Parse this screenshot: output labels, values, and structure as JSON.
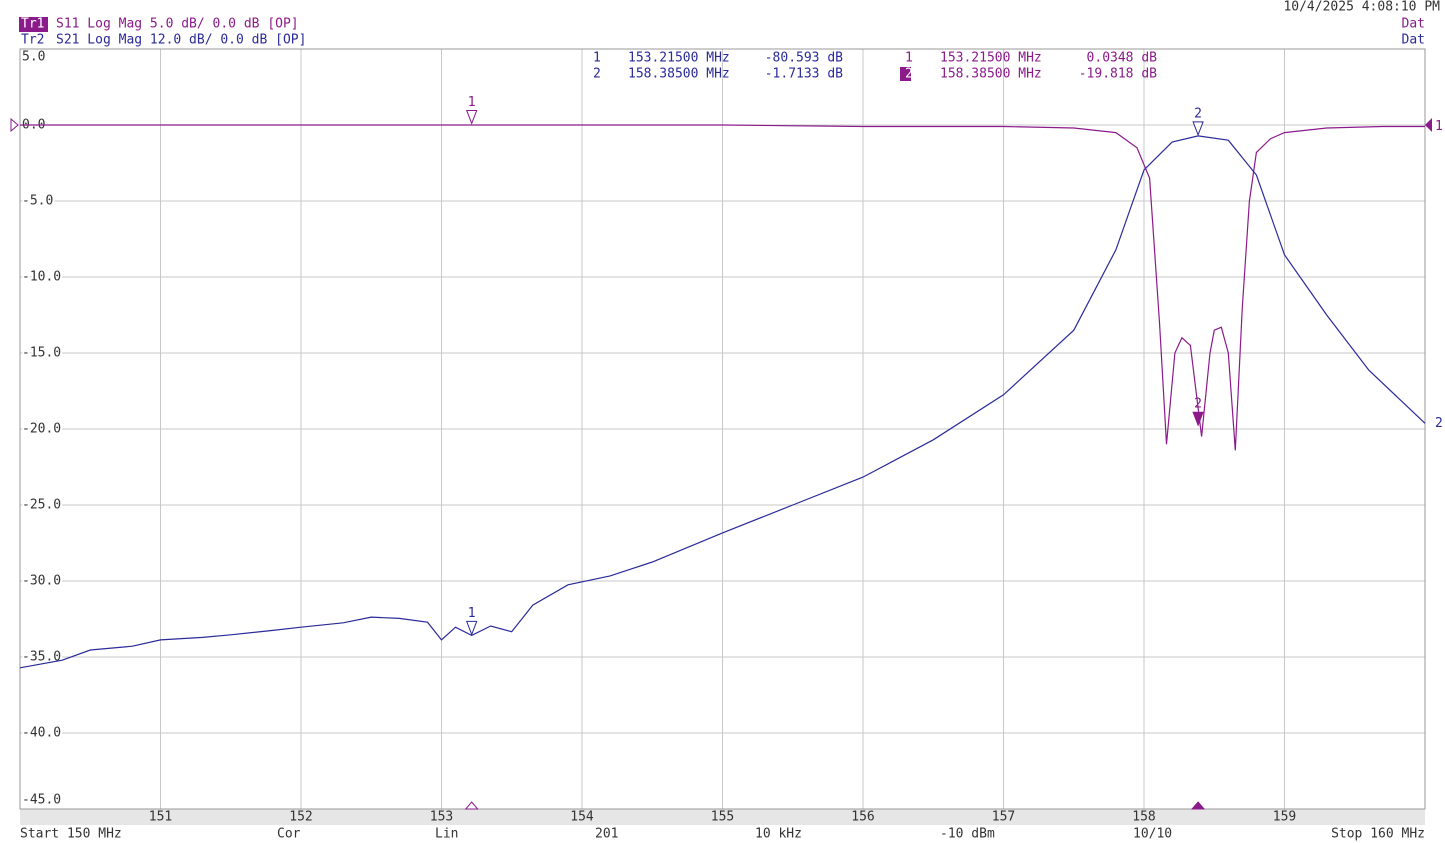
{
  "chart_data": {
    "type": "line",
    "timestamp": "10/4/2025 4:08:10 PM",
    "status": [
      "Dat",
      "Dat"
    ],
    "xlim": [
      150,
      160
    ],
    "xticks": [
      151,
      152,
      153,
      154,
      155,
      156,
      157,
      158,
      159
    ],
    "ylim": [
      -45,
      5
    ],
    "yticks": [
      {
        "value": 5,
        "label": "5.0"
      },
      {
        "value": 0,
        "label": "0.0"
      },
      {
        "value": -5,
        "label": "-5.0"
      },
      {
        "value": -10,
        "label": "-10.0"
      },
      {
        "value": -15,
        "label": "-15.0"
      },
      {
        "value": -20,
        "label": "-20.0"
      },
      {
        "value": -25,
        "label": "-25.0"
      },
      {
        "value": -30,
        "label": "-30.0"
      },
      {
        "value": -35,
        "label": "-35.0"
      },
      {
        "value": -40,
        "label": "-40.0"
      },
      {
        "value": -45,
        "label": "-45.0"
      }
    ],
    "y2lim": [
      -108,
      12
    ],
    "grid": true,
    "series": [
      {
        "name": "Tr1",
        "setup": "S11 Log Mag 5.0 dB/ 0.0 dB [OP]",
        "end_label": "1",
        "color": "#8b1a8b",
        "x": [
          150,
          151,
          152,
          153,
          154,
          155,
          156,
          157,
          157.5,
          157.8,
          157.95,
          158.04,
          158.11,
          158.16,
          158.22,
          158.27,
          158.33,
          158.41,
          158.47,
          158.5,
          158.55,
          158.6,
          158.65,
          158.7,
          158.75,
          158.8,
          158.9,
          159,
          159.3,
          159.7,
          160
        ],
        "values": [
          0,
          0,
          0,
          0,
          0,
          0,
          -0.1,
          -0.1,
          -0.2,
          -0.5,
          -1.5,
          -3.5,
          -13,
          -21,
          -15,
          -14,
          -14.5,
          -20.5,
          -15,
          -13.5,
          -13.3,
          -15,
          -21.4,
          -12,
          -5,
          -1.8,
          -0.9,
          -0.5,
          -0.2,
          -0.1,
          -0.1
        ],
        "markers": [
          {
            "label": "1",
            "x": 153.215,
            "y": 0.0348
          },
          {
            "label": "2",
            "x": 158.385,
            "y": -19.818
          }
        ],
        "readout": [
          [
            "1",
            "153.21500 MHz",
            "0.0348 dB"
          ],
          [
            "2",
            "158.38500 MHz",
            "-19.818 dB"
          ]
        ]
      },
      {
        "name": "Tr2",
        "setup": "S21 Log Mag 12.0 dB/ 0.0 dB [OP]",
        "end_label": "2",
        "color": "#2a2a9a",
        "axis": "y2",
        "x": [
          150,
          150.3,
          150.5,
          150.8,
          151,
          151.3,
          151.5,
          151.8,
          152,
          152.3,
          152.5,
          152.7,
          152.9,
          153,
          153.1,
          153.215,
          153.35,
          153.5,
          153.65,
          153.9,
          154.2,
          154.5,
          155,
          155.5,
          156,
          156.5,
          157,
          157.5,
          157.8,
          158,
          158.2,
          158.385,
          158.6,
          158.8,
          159,
          159.3,
          159.6,
          160
        ],
        "values": [
          -85.7,
          -84.5,
          -82.9,
          -82.3,
          -81.3,
          -80.9,
          -80.5,
          -79.8,
          -79.3,
          -78.6,
          -77.7,
          -77.9,
          -78.5,
          -81.3,
          -79.3,
          -80.593,
          -79.1,
          -80,
          -75.8,
          -72.6,
          -71.2,
          -69,
          -64.4,
          -60,
          -55.6,
          -49.7,
          -42.6,
          -32.4,
          -19.7,
          -7.1,
          -2.7,
          -1.7133,
          -2.4,
          -7.9,
          -20.5,
          -30,
          -38.7,
          -47.1
        ],
        "markers": [
          {
            "label": "1",
            "x": 153.215,
            "y": -80.593
          },
          {
            "label": "2",
            "x": 158.385,
            "y": -1.7133
          }
        ],
        "readout": [
          [
            "1",
            "153.21500 MHz",
            "-80.593 dB"
          ],
          [
            "2",
            "158.38500 MHz",
            "-1.7133 dB"
          ]
        ]
      }
    ],
    "footer": [
      "Start 150 MHz",
      "Cor",
      "Lin",
      "201",
      "10 kHz",
      "-10 dBm",
      "10/10",
      "Stop 160 MHz"
    ]
  }
}
